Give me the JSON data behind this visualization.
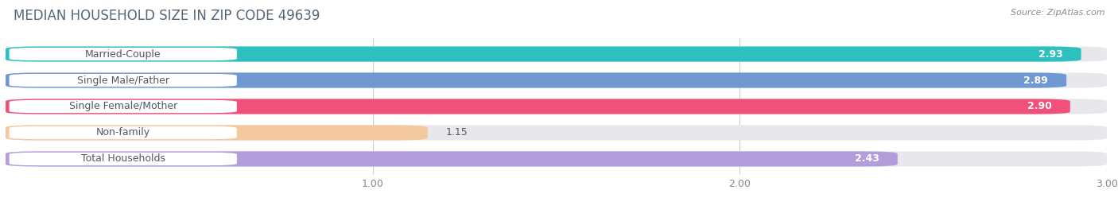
{
  "title": "MEDIAN HOUSEHOLD SIZE IN ZIP CODE 49639",
  "source": "Source: ZipAtlas.com",
  "categories": [
    "Married-Couple",
    "Single Male/Father",
    "Single Female/Mother",
    "Non-family",
    "Total Households"
  ],
  "values": [
    2.93,
    2.89,
    2.9,
    1.15,
    2.43
  ],
  "bar_colors": [
    "#2ebfbf",
    "#7099d4",
    "#f0507a",
    "#f5c9a0",
    "#b39ddb"
  ],
  "bar_bg_color": "#e8e8ec",
  "xlim_max": 3.0,
  "xticks": [
    1.0,
    2.0,
    3.0
  ],
  "label_text_color": "#555566",
  "title_color": "#556677",
  "source_color": "#888899",
  "title_fontsize": 12,
  "bar_label_fontsize": 9,
  "value_fontsize": 9,
  "background_color": "#ffffff",
  "tick_color": "#888888"
}
